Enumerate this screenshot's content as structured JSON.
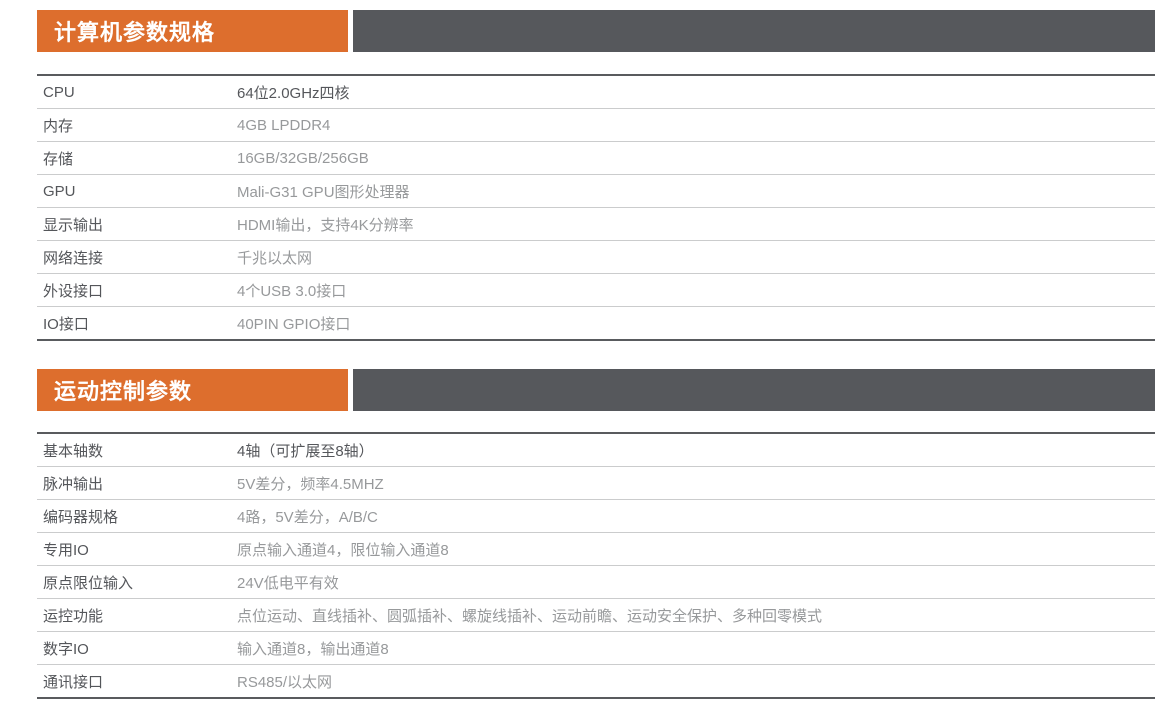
{
  "colors": {
    "accent_orange": "#DD6E2D",
    "header_bar_gray": "#56585C",
    "dark_text": "#54565A",
    "light_value_text": "#97999B",
    "table_border_dark": "#595B5E",
    "row_separator": "#CBCCCD"
  },
  "sections": [
    {
      "title": "计算机参数规格",
      "rows": [
        {
          "label": "CPU",
          "value": "64位2.0GHz四核"
        },
        {
          "label": "内存",
          "value": "4GB LPDDR4"
        },
        {
          "label": "存储",
          "value": "16GB/32GB/256GB"
        },
        {
          "label": "GPU",
          "value": "Mali-G31 GPU图形处理器"
        },
        {
          "label": "显示输出",
          "value": "HDMI输出，支持4K分辨率"
        },
        {
          "label": "网络连接",
          "value": "千兆以太网"
        },
        {
          "label": "外设接口",
          "value": "4个USB 3.0接口"
        },
        {
          "label": "IO接口",
          "value": "40PIN GPIO接口"
        }
      ]
    },
    {
      "title": "运动控制参数",
      "rows": [
        {
          "label": "基本轴数",
          "value": "4轴（可扩展至8轴）"
        },
        {
          "label": "脉冲输出",
          "value": "5V差分，频率4.5MHZ"
        },
        {
          "label": "编码器规格",
          "value": "4路，5V差分，A/B/C"
        },
        {
          "label": "专用IO",
          "value": "原点输入通道4，限位输入通道8"
        },
        {
          "label": "原点限位输入",
          "value": "24V低电平有效"
        },
        {
          "label": "运控功能",
          "value": "点位运动、直线插补、圆弧插补、螺旋线插补、运动前瞻、运动安全保护、多种回零模式"
        },
        {
          "label": "数字IO",
          "value": "输入通道8，输出通道8"
        },
        {
          "label": "通讯接口",
          "value": "RS485/以太网"
        }
      ]
    }
  ]
}
